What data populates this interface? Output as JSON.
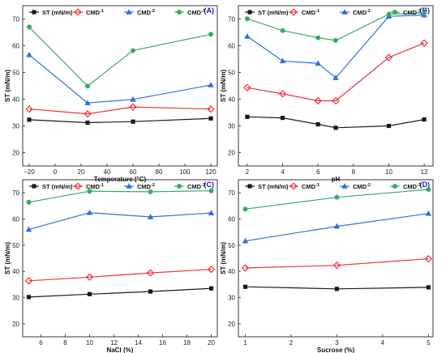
{
  "chart_data": [
    {
      "panel": "(A)",
      "type": "line",
      "xlabel": "Temperature (°C)",
      "ylabel": "ST (mN/m)",
      "xlim": [
        -25,
        125
      ],
      "ylim": [
        15,
        75
      ],
      "xticks": [
        -20,
        0,
        20,
        40,
        60,
        80,
        100,
        120
      ],
      "xtick_labels": [
        "−20",
        "0",
        "20",
        "40",
        "60",
        "80",
        "100",
        "120"
      ],
      "yticks": [
        20,
        30,
        40,
        50,
        60,
        70
      ],
      "x": [
        -20,
        25,
        60,
        120
      ],
      "series": [
        {
          "name": "ST (mN/m)",
          "values": [
            32.3,
            31.2,
            31.6,
            32.8
          ]
        },
        {
          "name": "CMD-1",
          "values": [
            36.3,
            34.5,
            37.1,
            36.3
          ]
        },
        {
          "name": "CMD-2",
          "values": [
            56.6,
            38.6,
            39.9,
            45.3
          ]
        },
        {
          "name": "CMD-3",
          "values": [
            67.0,
            44.9,
            58.2,
            64.3
          ]
        }
      ]
    },
    {
      "panel": "(B)",
      "type": "line",
      "xlabel": "pH",
      "ylabel": "ST (mN/m)",
      "xlim": [
        1.5,
        12.5
      ],
      "ylim": [
        15,
        75
      ],
      "xticks": [
        2,
        4,
        6,
        8,
        10,
        12
      ],
      "xtick_labels": [
        "2",
        "4",
        "6",
        "8",
        "10",
        "12"
      ],
      "yticks": [
        20,
        30,
        40,
        50,
        60,
        70
      ],
      "x": [
        2,
        4,
        6,
        7,
        10,
        12
      ],
      "series": [
        {
          "name": "ST (mN/m)",
          "values": [
            33.4,
            33.0,
            30.6,
            29.3,
            30.0,
            32.4
          ]
        },
        {
          "name": "CMD-1",
          "values": [
            44.3,
            42.0,
            39.4,
            39.4,
            55.6,
            61.0
          ]
        },
        {
          "name": "CMD-2",
          "values": [
            63.5,
            54.3,
            53.4,
            48.0,
            71.0,
            71.5
          ]
        },
        {
          "name": "CMD-3",
          "values": [
            70.1,
            65.7,
            63.0,
            62.0,
            71.8,
            72.3
          ]
        }
      ]
    },
    {
      "panel": "(C)",
      "type": "line",
      "xlabel": "NaCl (%)",
      "ylabel": "ST (mN/m)",
      "xlim": [
        4.5,
        20.5
      ],
      "ylim": [
        15,
        75
      ],
      "xticks": [
        6,
        8,
        10,
        12,
        14,
        16,
        18,
        20
      ],
      "xtick_labels": [
        "6",
        "8",
        "10",
        "12",
        "14",
        "16",
        "18",
        "20"
      ],
      "yticks": [
        20,
        30,
        40,
        50,
        60,
        70
      ],
      "x": [
        5,
        10,
        15,
        20
      ],
      "series": [
        {
          "name": "ST (mN/m)",
          "values": [
            30.2,
            31.3,
            32.3,
            33.5
          ]
        },
        {
          "name": "CMD-1",
          "values": [
            36.4,
            37.8,
            39.4,
            40.8
          ]
        },
        {
          "name": "CMD-2",
          "values": [
            56.0,
            62.4,
            60.8,
            62.3
          ]
        },
        {
          "name": "CMD-3",
          "values": [
            66.4,
            70.6,
            70.4,
            70.8
          ]
        }
      ]
    },
    {
      "panel": "(D)",
      "type": "line",
      "xlabel": "Sucrose (%)",
      "ylabel": "ST (mN/m)",
      "xlim": [
        0.85,
        5.1
      ],
      "ylim": [
        15,
        75
      ],
      "xticks": [
        1,
        2,
        3,
        4,
        5
      ],
      "xtick_labels": [
        "1",
        "2",
        "3",
        "4",
        "5"
      ],
      "yticks": [
        20,
        30,
        40,
        50,
        60,
        70
      ],
      "x": [
        1,
        3,
        5
      ],
      "series": [
        {
          "name": "ST (mN/m)",
          "values": [
            34.1,
            33.3,
            33.9
          ]
        },
        {
          "name": "CMD-1",
          "values": [
            41.3,
            42.3,
            44.8
          ]
        },
        {
          "name": "CMD-2",
          "values": [
            51.6,
            57.2,
            62.1
          ]
        },
        {
          "name": "CMD-3",
          "values": [
            63.8,
            68.3,
            71.3
          ]
        }
      ]
    }
  ],
  "legend": {
    "position": "top-left",
    "entries": [
      {
        "label": "ST (mN/m)",
        "base": "ST (mN/m)",
        "sup": "",
        "marker": "square",
        "color": "#1a1a1a"
      },
      {
        "label": "CMD-1",
        "base": "CMD",
        "sup": "-1",
        "marker": "diamond",
        "color": "#e8323c"
      },
      {
        "label": "CMD-2",
        "base": "CMD",
        "sup": "-2",
        "marker": "triangle",
        "color": "#2f6fd6"
      },
      {
        "label": "CMD-3",
        "base": "CMD",
        "sup": "-3",
        "marker": "circle",
        "color": "#3aaa63"
      }
    ]
  },
  "colors": {
    "panel_label_text": "#1a1ab0",
    "axis": "#222222"
  }
}
